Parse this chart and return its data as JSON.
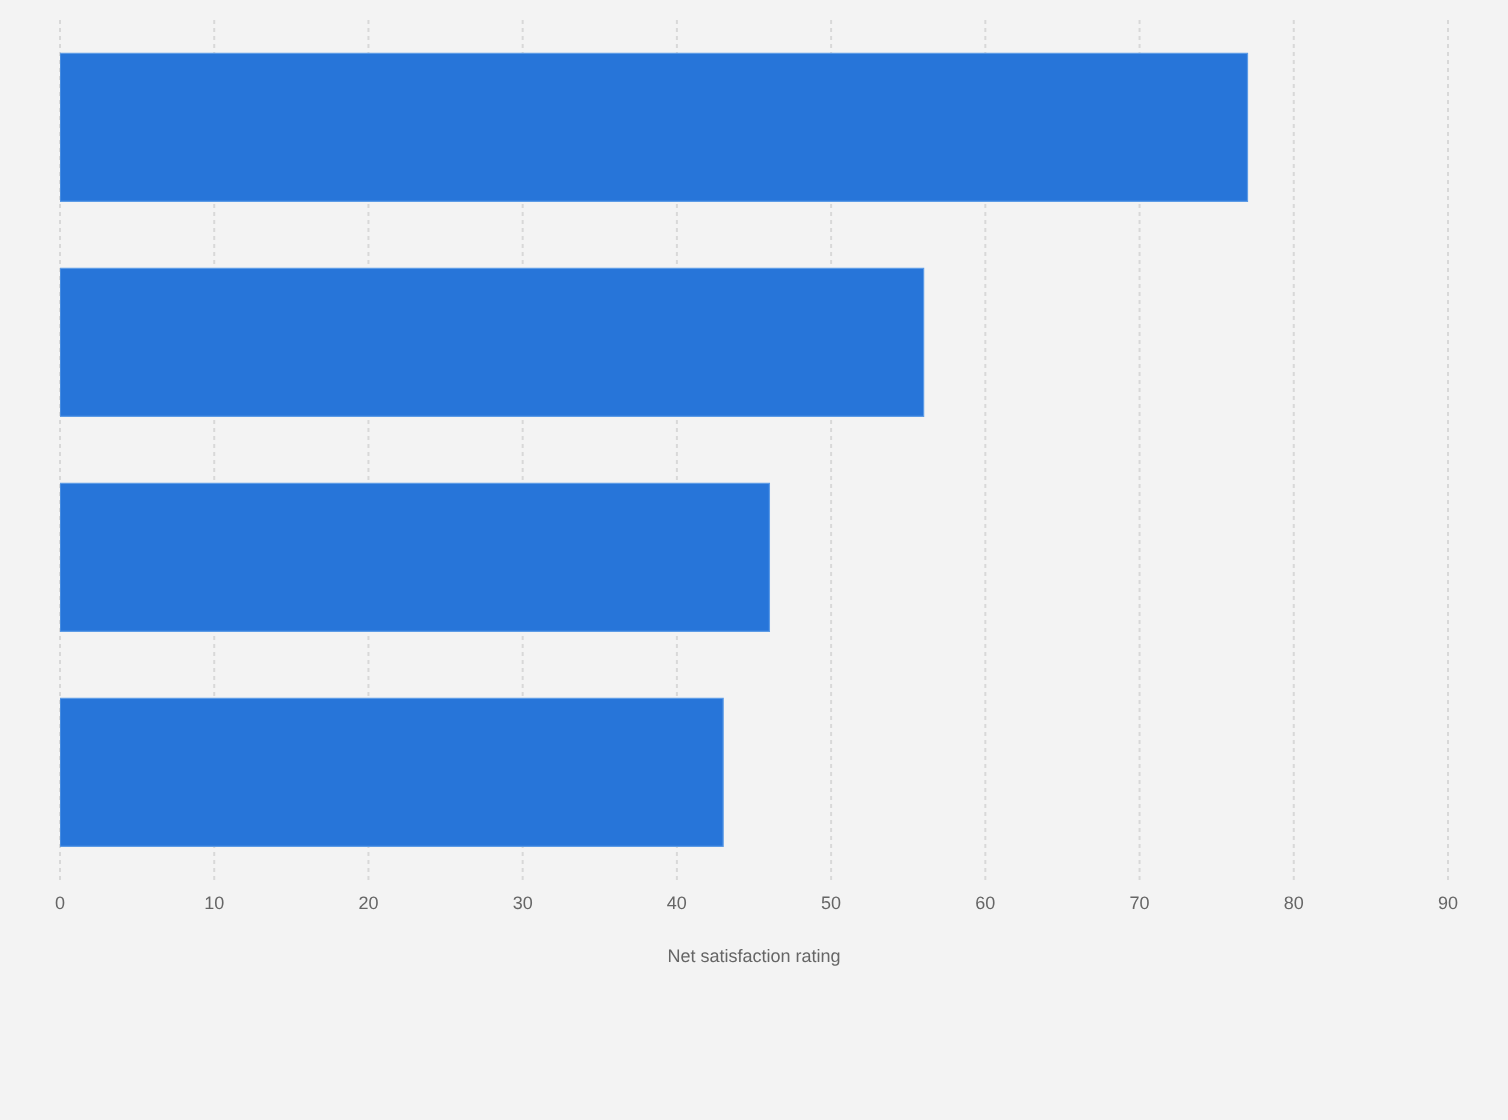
{
  "chart_data": {
    "type": "bar",
    "orientation": "horizontal",
    "categories": [
      null,
      null,
      null,
      null
    ],
    "values": [
      77,
      56,
      46,
      43
    ],
    "color": "#2775d9",
    "xlabel": "Net satisfaction rating",
    "xlim": [
      0,
      90
    ],
    "xticks": [
      0,
      10,
      20,
      30,
      40,
      50,
      60,
      70,
      80,
      90
    ],
    "grid": "x",
    "tick_labels": "x"
  }
}
